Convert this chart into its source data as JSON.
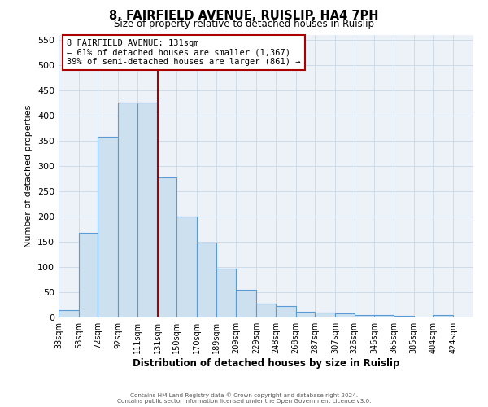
{
  "title1": "8, FAIRFIELD AVENUE, RUISLIP, HA4 7PH",
  "title2": "Size of property relative to detached houses in Ruislip",
  "xlabel": "Distribution of detached houses by size in Ruislip",
  "ylabel": "Number of detached properties",
  "bin_labels": [
    "33sqm",
    "53sqm",
    "72sqm",
    "92sqm",
    "111sqm",
    "131sqm",
    "150sqm",
    "170sqm",
    "189sqm",
    "209sqm",
    "229sqm",
    "248sqm",
    "268sqm",
    "287sqm",
    "307sqm",
    "326sqm",
    "346sqm",
    "365sqm",
    "385sqm",
    "404sqm",
    "424sqm"
  ],
  "bin_edges": [
    33,
    53,
    72,
    92,
    111,
    131,
    150,
    170,
    189,
    209,
    229,
    248,
    268,
    287,
    307,
    326,
    346,
    365,
    385,
    404,
    424
  ],
  "bar_heights": [
    15,
    168,
    357,
    425,
    425,
    277,
    200,
    148,
    97,
    55,
    28,
    22,
    12,
    10,
    8,
    5,
    5,
    3,
    0,
    5
  ],
  "bar_facecolor": "#cce0f0",
  "bar_edgecolor": "#5b9bd5",
  "vline_x": 131,
  "vline_color": "#aa0000",
  "ylim": [
    0,
    560
  ],
  "yticks": [
    0,
    50,
    100,
    150,
    200,
    250,
    300,
    350,
    400,
    450,
    500,
    550
  ],
  "grid_color": "#c8d8e8",
  "bg_color": "#edf2f9",
  "annotation_title": "8 FAIRFIELD AVENUE: 131sqm",
  "annotation_line1": "← 61% of detached houses are smaller (1,367)",
  "annotation_line2": "39% of semi-detached houses are larger (861) →",
  "footer1": "Contains HM Land Registry data © Crown copyright and database right 2024.",
  "footer2": "Contains public sector information licensed under the Open Government Licence v3.0."
}
